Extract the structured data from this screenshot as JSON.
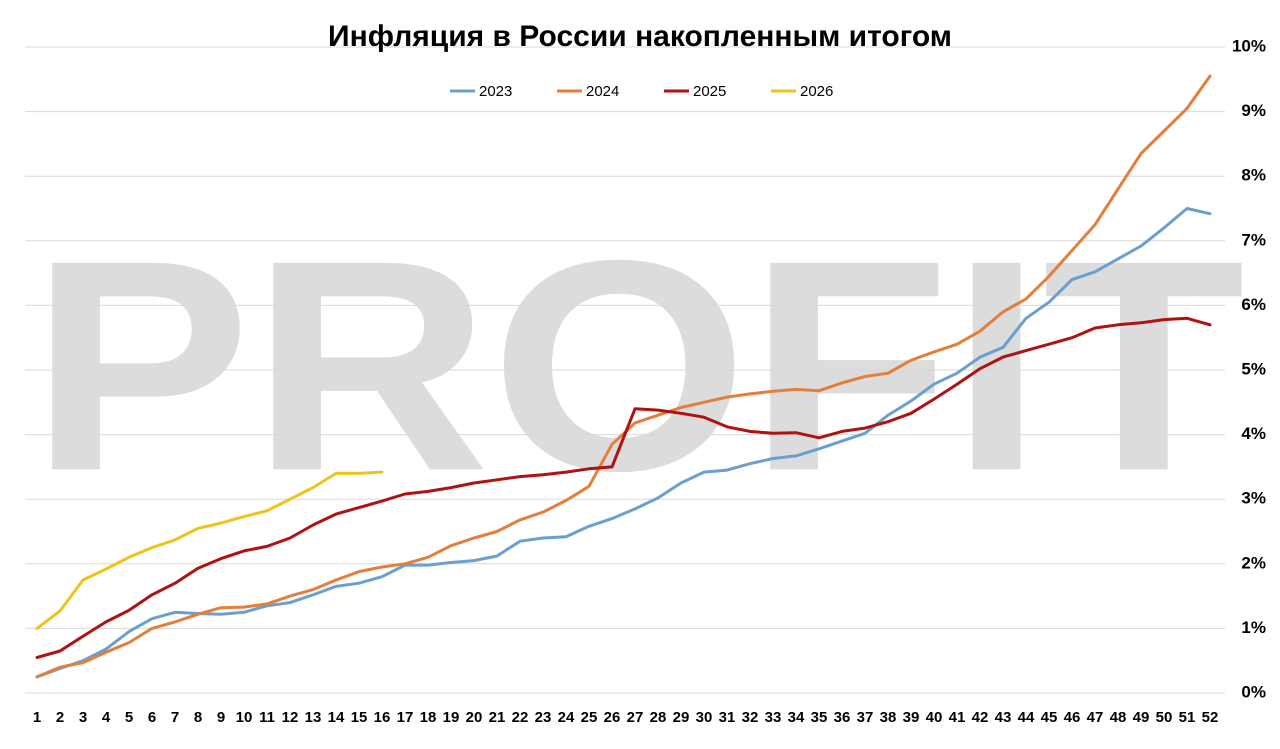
{
  "chart_data": {
    "type": "line",
    "title": "Инфляция в России накопленным итогом",
    "watermark": "PROFIT",
    "legend": "top",
    "grid": true,
    "categories": [
      "1",
      "2",
      "3",
      "4",
      "5",
      "6",
      "7",
      "8",
      "9",
      "10",
      "11",
      "12",
      "13",
      "14",
      "15",
      "16",
      "17",
      "18",
      "19",
      "20",
      "21",
      "22",
      "23",
      "24",
      "25",
      "26",
      "27",
      "28",
      "29",
      "30",
      "31",
      "32",
      "33",
      "34",
      "35",
      "36",
      "37",
      "38",
      "39",
      "40",
      "41",
      "42",
      "43",
      "44",
      "45",
      "46",
      "47",
      "48",
      "49",
      "50",
      "51",
      "52"
    ],
    "ylim": [
      0,
      10
    ],
    "yticks": [
      {
        "value": 0,
        "label": "0%"
      },
      {
        "value": 1,
        "label": "1%"
      },
      {
        "value": 2,
        "label": "2%"
      },
      {
        "value": 3,
        "label": "3%"
      },
      {
        "value": 4,
        "label": "4%"
      },
      {
        "value": 5,
        "label": "5%"
      },
      {
        "value": 6,
        "label": "6%"
      },
      {
        "value": 7,
        "label": "7%"
      },
      {
        "value": 8,
        "label": "8%"
      },
      {
        "value": 9,
        "label": "9%"
      },
      {
        "value": 10,
        "label": "10%"
      }
    ],
    "series": [
      {
        "name": "2023",
        "color": "#6a9fd0",
        "values": [
          0.25,
          0.38,
          0.5,
          0.68,
          0.95,
          1.15,
          1.25,
          1.23,
          1.22,
          1.25,
          1.35,
          1.4,
          1.52,
          1.65,
          1.7,
          1.8,
          1.98,
          1.98,
          2.02,
          2.05,
          2.12,
          2.35,
          2.4,
          2.42,
          2.58,
          2.7,
          2.85,
          3.02,
          3.25,
          3.42,
          3.45,
          3.55,
          3.63,
          3.67,
          3.78,
          3.9,
          4.02,
          4.3,
          4.52,
          4.78,
          4.95,
          5.2,
          5.35,
          5.8,
          6.05,
          6.4,
          6.52,
          6.72,
          6.92,
          7.2,
          7.5,
          7.42
        ]
      },
      {
        "name": "2024",
        "color": "#e37e3b",
        "values": [
          0.25,
          0.4,
          0.47,
          0.63,
          0.78,
          1.0,
          1.1,
          1.22,
          1.32,
          1.33,
          1.38,
          1.5,
          1.6,
          1.75,
          1.88,
          1.95,
          2.0,
          2.1,
          2.28,
          2.4,
          2.5,
          2.68,
          2.8,
          2.98,
          3.2,
          3.85,
          4.18,
          4.3,
          4.42,
          4.5,
          4.58,
          4.63,
          4.67,
          4.7,
          4.68,
          4.8,
          4.9,
          4.95,
          5.15,
          5.28,
          5.4,
          5.6,
          5.9,
          6.1,
          6.45,
          6.85,
          7.25,
          7.8,
          8.35,
          8.7,
          9.05,
          9.55
        ]
      },
      {
        "name": "2025",
        "color": "#b01212",
        "values": [
          0.55,
          0.65,
          0.88,
          1.1,
          1.28,
          1.52,
          1.7,
          1.93,
          2.08,
          2.2,
          2.27,
          2.4,
          2.6,
          2.77,
          2.87,
          2.97,
          3.08,
          3.12,
          3.18,
          3.25,
          3.3,
          3.35,
          3.38,
          3.42,
          3.47,
          3.5,
          4.4,
          4.38,
          4.33,
          4.27,
          4.12,
          4.05,
          4.02,
          4.03,
          3.95,
          4.05,
          4.1,
          4.2,
          4.33,
          4.55,
          4.78,
          5.02,
          5.2,
          5.3,
          5.4,
          5.5,
          5.65,
          5.7,
          5.73,
          5.78,
          5.8,
          5.7
        ]
      },
      {
        "name": "2026",
        "color": "#f0c21c",
        "values": [
          1.0,
          1.27,
          1.75,
          1.92,
          2.1,
          2.25,
          2.37,
          2.55,
          2.63,
          2.73,
          2.82,
          3.0,
          3.18,
          3.4,
          3.4,
          3.42,
          null,
          null,
          null,
          null,
          null,
          null,
          null,
          null,
          null,
          null,
          null,
          null,
          null,
          null,
          null,
          null,
          null,
          null,
          null,
          null,
          null,
          null,
          null,
          null,
          null,
          null,
          null,
          null,
          null,
          null,
          null,
          null,
          null,
          null,
          null,
          null
        ]
      }
    ]
  }
}
